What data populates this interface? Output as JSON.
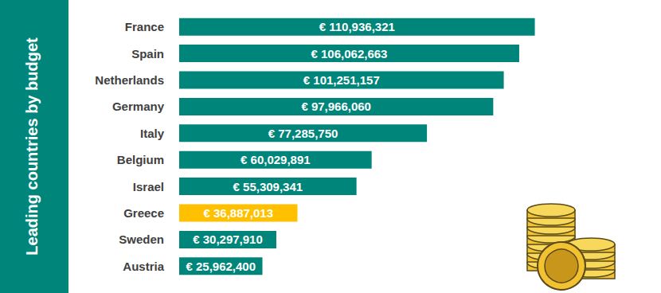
{
  "chart_data": {
    "type": "bar",
    "title": "Leading countries by budget",
    "orientation": "horizontal",
    "categories": [
      "France",
      "Spain",
      "Netherlands",
      "Germany",
      "Italy",
      "Belgium",
      "Israel",
      "Greece",
      "Sweden",
      "Austria"
    ],
    "values": [
      110936321,
      106062663,
      101251157,
      97966060,
      77285750,
      60029891,
      55309341,
      36887013,
      30297910,
      25962400
    ],
    "value_labels": [
      "€ 110,936,321",
      "€ 106,062,663",
      "€ 101,251,157",
      "€ 97,966,060",
      "€ 77,285,750",
      "€ 60,029,891",
      "€ 55,309,341",
      "€ 36,887,013",
      "€ 30,297,910",
      "€ 25,962,400"
    ],
    "colors": [
      "#00857a",
      "#00857a",
      "#00857a",
      "#00857a",
      "#00857a",
      "#00857a",
      "#00857a",
      "#ffc000",
      "#00857a",
      "#00857a"
    ],
    "xlim": [
      0,
      118000000
    ],
    "data_labels": true,
    "tick_labels": "y",
    "grid": false
  }
}
